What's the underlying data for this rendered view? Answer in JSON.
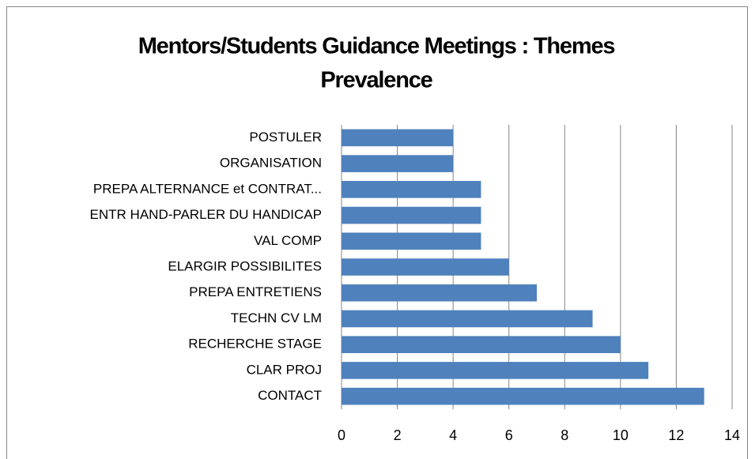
{
  "chart_data": {
    "type": "bar",
    "orientation": "horizontal",
    "title": [
      "Mentors/Students Guidance Meetings : Themes",
      "Prevalence"
    ],
    "categories": [
      "POSTULER",
      "ORGANISATION",
      "PREPA ALTERNANCE et CONTRAT...",
      "ENTR HAND-PARLER DU HANDICAP",
      "VAL COMP",
      "ELARGIR POSSIBILITES",
      "PREPA ENTRETIENS",
      "TECHN CV LM",
      "RECHERCHE STAGE",
      "CLAR PROJ",
      "CONTACT"
    ],
    "values": [
      4,
      4,
      5,
      5,
      5,
      6,
      7,
      9,
      10,
      11,
      13
    ],
    "color": "#4f81bd",
    "xlim": [
      0,
      14
    ],
    "xticks": [
      0,
      2,
      4,
      6,
      8,
      10,
      12,
      14
    ],
    "grid": true
  }
}
